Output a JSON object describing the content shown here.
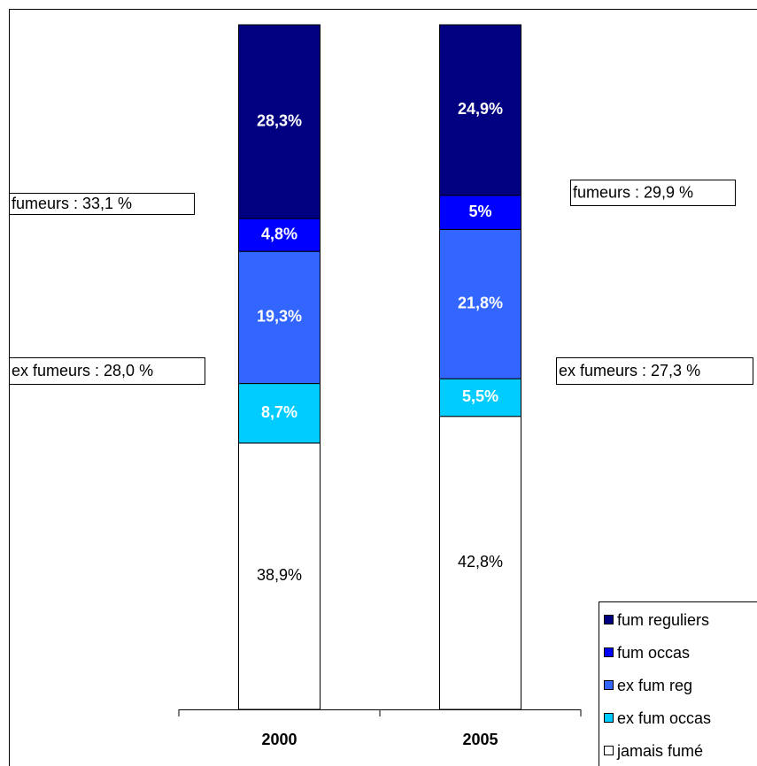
{
  "chart_data": {
    "type": "stacked_bar",
    "categories": [
      "2000",
      "2005"
    ],
    "ylim": [
      0,
      100
    ],
    "series": [
      {
        "name": "jamais fumé",
        "color": "#ffffff",
        "values": [
          38.9,
          42.8
        ],
        "value_labels": [
          "38,9%",
          "42,8%"
        ]
      },
      {
        "name": "ex fum occas",
        "color": "#00ccff",
        "values": [
          8.7,
          5.5
        ],
        "value_labels": [
          "8,7%",
          "5,5%"
        ]
      },
      {
        "name": "ex fum reg",
        "color": "#3366ff",
        "values": [
          19.3,
          21.8
        ],
        "value_labels": [
          "19,3%",
          "21,8%"
        ]
      },
      {
        "name": "fum occas",
        "color": "#0000ff",
        "values": [
          4.8,
          5
        ],
        "value_labels": [
          "4,8%",
          "5%"
        ]
      },
      {
        "name": "fum reguliers",
        "color": "#000080",
        "values": [
          28.3,
          24.9
        ],
        "value_labels": [
          "28,3%",
          "24,9%"
        ]
      }
    ],
    "annotations": [
      {
        "text": "fumeurs : 33,1 %"
      },
      {
        "text": "ex fumeurs : 28,0 %"
      },
      {
        "text": "fumeurs : 29,9 %"
      },
      {
        "text": "ex fumeurs : 27,3 %"
      }
    ],
    "legend": "lower right"
  }
}
